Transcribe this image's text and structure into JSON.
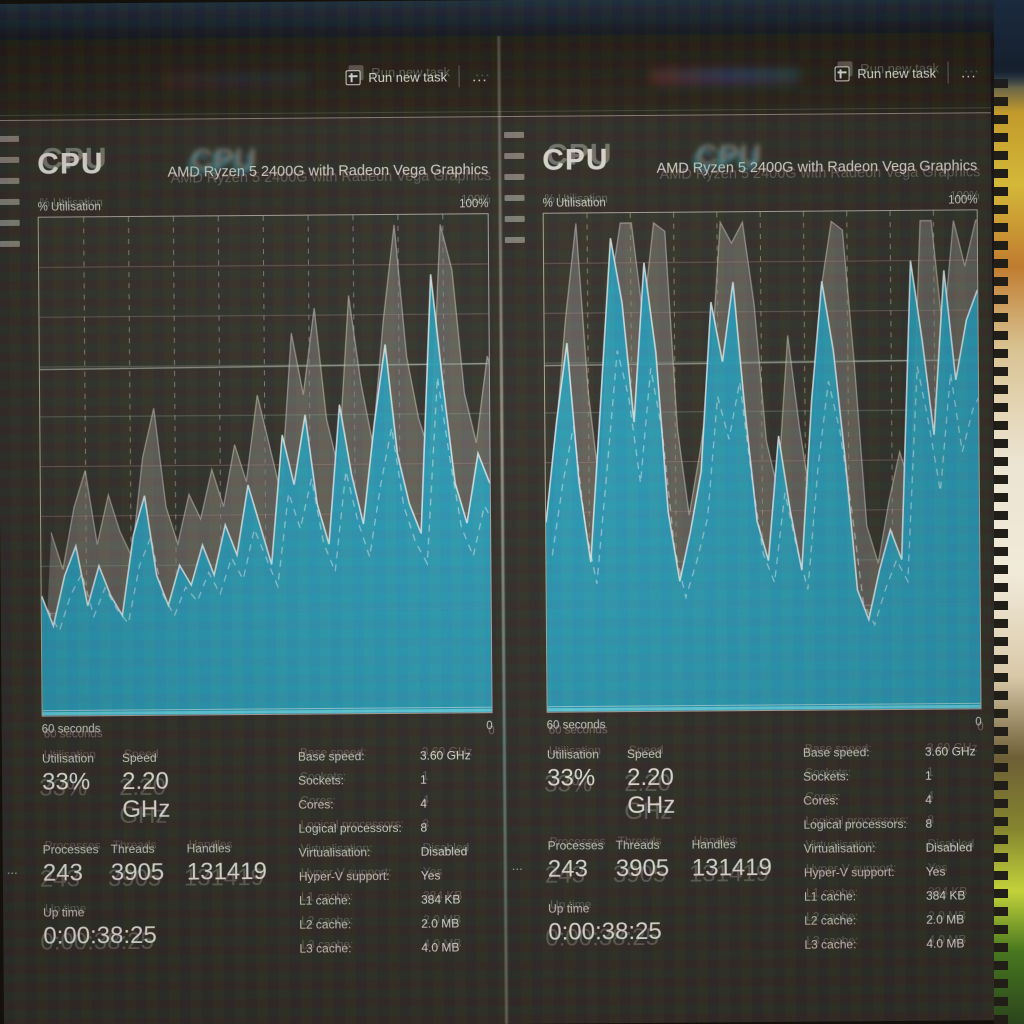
{
  "window": {
    "run_new_task_label": "Run new task",
    "more_label": "...",
    "sidebar_hint_count": 6,
    "edge_ellipsis": "..."
  },
  "panel": {
    "title": "CPU",
    "subtitle": "AMD Ryzen 5 2400G with Radeon Vega Graphics",
    "chart_top_left_label": "% Utilisation",
    "chart_top_right_label": "100%",
    "chart_bottom_left_label": "60 seconds",
    "chart_bottom_right_label": "0",
    "stats_left": {
      "utilisation_label": "Utilisation",
      "utilisation_value": "33%",
      "speed_label": "Speed",
      "speed_value": "2.20 GHz",
      "processes_label": "Processes",
      "processes_value": "243",
      "threads_label": "Threads",
      "threads_value": "3905",
      "handles_label": "Handles",
      "handles_value": "131419",
      "uptime_label": "Up time",
      "uptime_value": "0:00:38:25"
    },
    "stats_right": [
      {
        "label": "Base speed:",
        "value": "3.60 GHz"
      },
      {
        "label": "Sockets:",
        "value": "1"
      },
      {
        "label": "Cores:",
        "value": "4"
      },
      {
        "label": "Logical processors:",
        "value": "8"
      },
      {
        "label": "Virtualisation:",
        "value": "Disabled"
      },
      {
        "label": "Hyper-V support:",
        "value": "Yes"
      },
      {
        "label": "L1 cache:",
        "value": "384 KB"
      },
      {
        "label": "L2 cache:",
        "value": "2.0 MB"
      },
      {
        "label": "L3 cache:",
        "value": "4.0 MB"
      }
    ]
  },
  "chart_data": [
    {
      "type": "area",
      "title": "CPU % Utilisation - left window copy (60 s history)",
      "xlabel": "60 seconds",
      "ylabel": "% Utilisation",
      "ylim": [
        0,
        100
      ],
      "grid": true,
      "y_max_label": "100%",
      "y_min_label": "0",
      "series": [
        {
          "name": "% Utilisation",
          "values": [
            24,
            18,
            28,
            34,
            22,
            30,
            24,
            20,
            36,
            44,
            28,
            22,
            30,
            26,
            34,
            28,
            38,
            32,
            46,
            38,
            30,
            56,
            46,
            60,
            42,
            34,
            62,
            48,
            38,
            58,
            74,
            52,
            42,
            36,
            88,
            66,
            46,
            38,
            52,
            46
          ]
        }
      ]
    },
    {
      "type": "area",
      "title": "CPU % Utilisation - right window copy (60 s history)",
      "xlabel": "60 seconds",
      "ylabel": "% Utilisation",
      "ylim": [
        0,
        100
      ],
      "grid": true,
      "y_max_label": "100%",
      "y_min_label": "0",
      "series": [
        {
          "name": "% Utilisation",
          "values": [
            38,
            58,
            74,
            46,
            30,
            62,
            95,
            82,
            58,
            90,
            72,
            40,
            26,
            36,
            48,
            82,
            70,
            86,
            60,
            38,
            30,
            55,
            40,
            28,
            62,
            86,
            72,
            50,
            24,
            18,
            28,
            36,
            30,
            90,
            74,
            55,
            88,
            66,
            78,
            84
          ]
        }
      ]
    }
  ],
  "colors": {
    "accent_cyan_fill": "#17a2c6",
    "accent_cyan_bright": "#55dff2",
    "ghost_gray": "#8e8a84",
    "chart_grid": "#d8d3c8",
    "window_bg": "#2f2c26",
    "titlebar_bg": "#241e16",
    "top_strip_bg": "#17222f",
    "text": "#e8e5dc"
  }
}
